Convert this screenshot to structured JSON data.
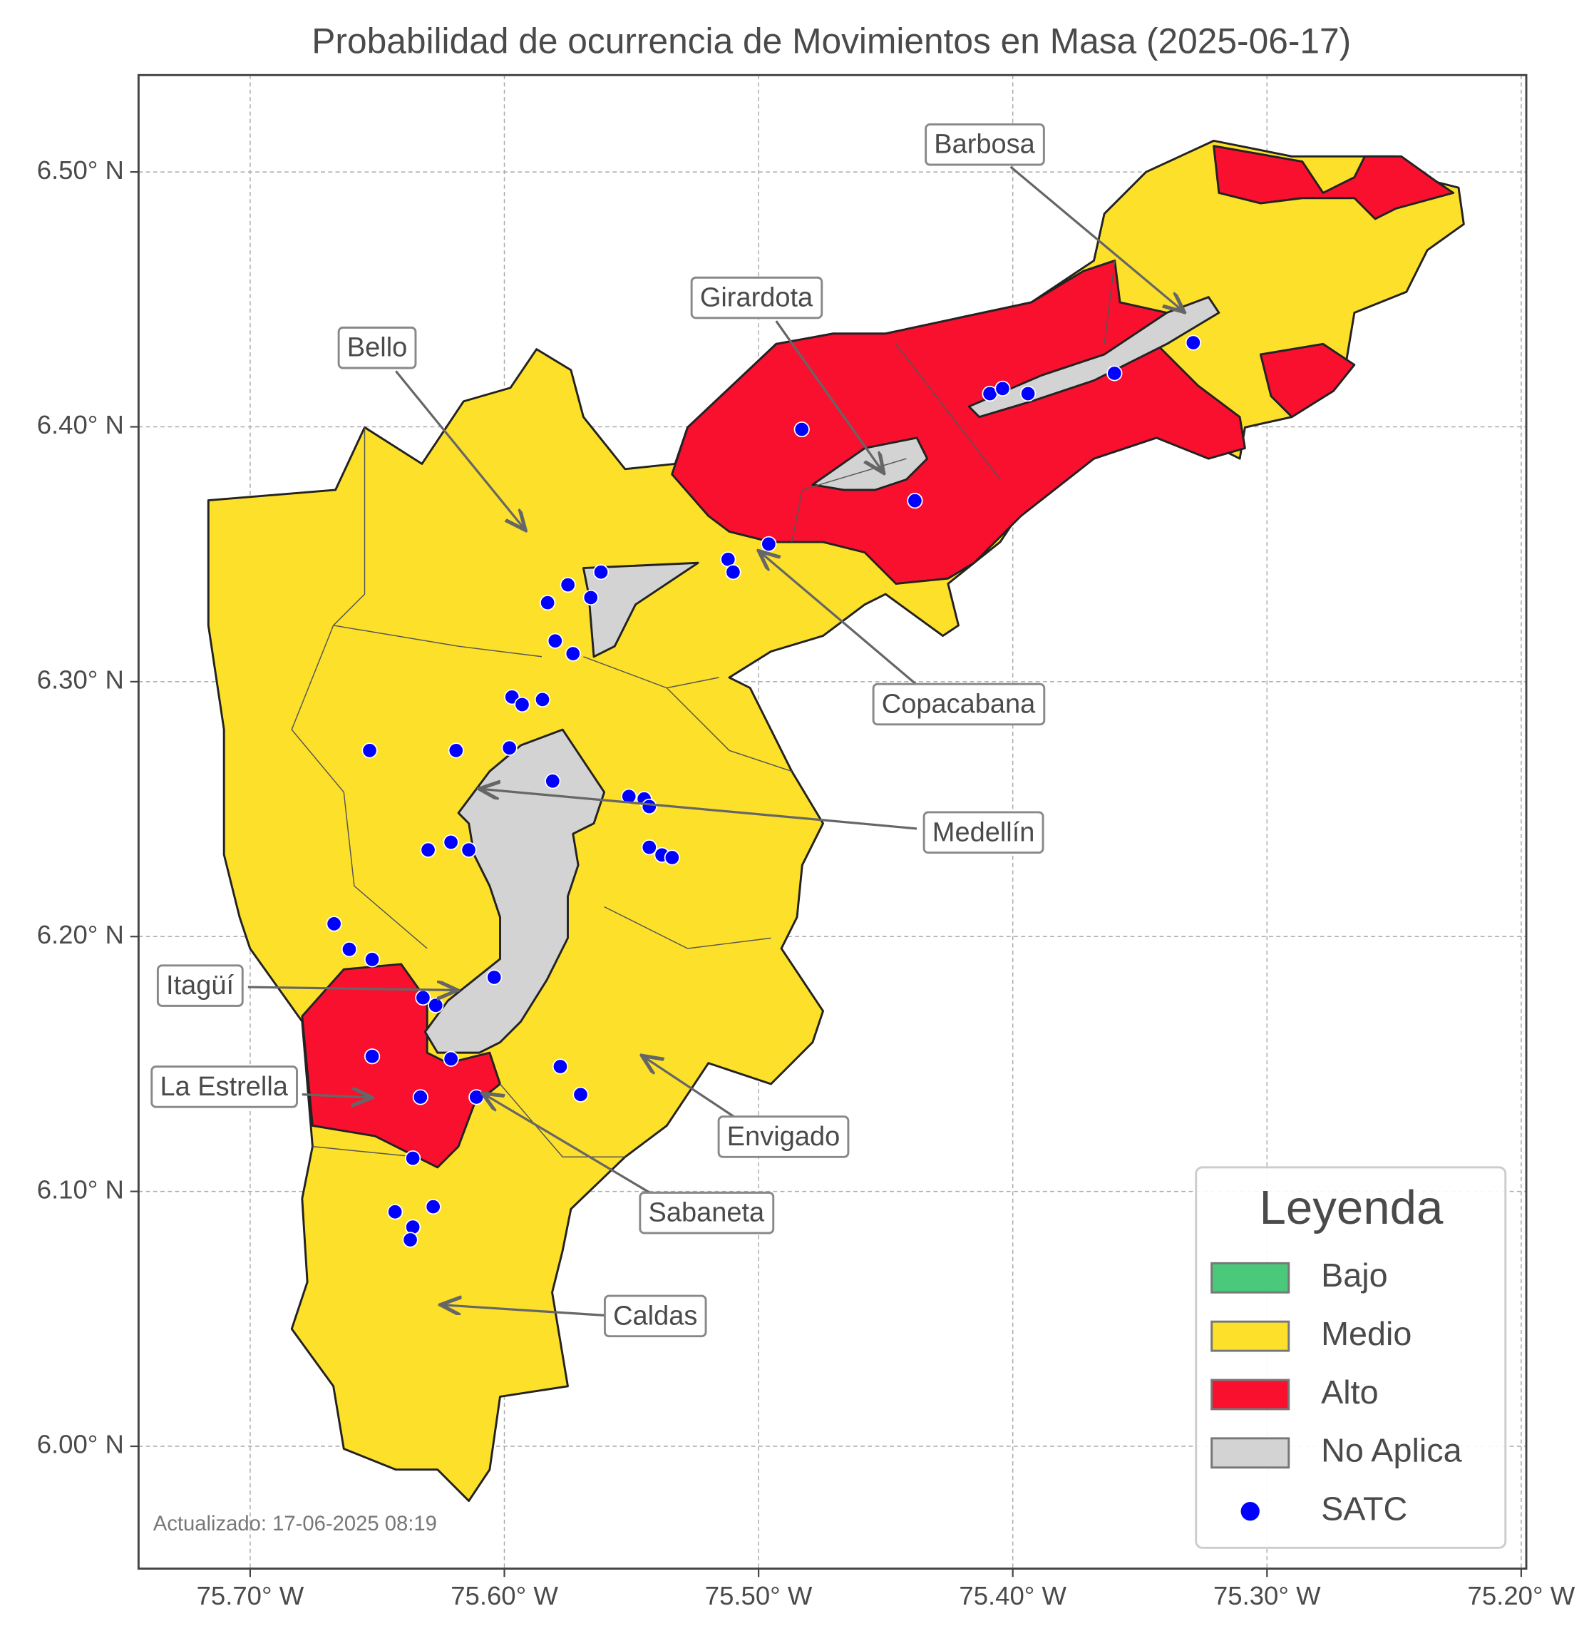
{
  "chart_data": {
    "type": "map",
    "title": "Probabilidad de ocurrencia de Movimientos en Masa (2025-06-17)",
    "xlim": [
      -75.7439,
      -75.198
    ],
    "ylim": [
      5.952,
      6.538
    ],
    "xticks": [
      {
        "value": -75.7,
        "label": "75.70° W"
      },
      {
        "value": -75.6,
        "label": "75.60° W"
      },
      {
        "value": -75.5,
        "label": "75.50° W"
      },
      {
        "value": -75.4,
        "label": "75.40° W"
      },
      {
        "value": -75.3,
        "label": "75.30° W"
      },
      {
        "value": -75.2,
        "label": "75.20° W"
      }
    ],
    "yticks": [
      {
        "value": 6.0,
        "label": "6.00° N"
      },
      {
        "value": 6.1,
        "label": "6.10° N"
      },
      {
        "value": 6.2,
        "label": "6.20° N"
      },
      {
        "value": 6.3,
        "label": "6.30° N"
      },
      {
        "value": 6.4,
        "label": "6.40° N"
      },
      {
        "value": 6.5,
        "label": "6.50° N"
      }
    ],
    "grid": true,
    "legend": {
      "title": "Leyenda",
      "position": "lower right",
      "items": [
        {
          "name": "Bajo",
          "color": "#4ac97a"
        },
        {
          "name": "Medio",
          "color": "#fde02a"
        },
        {
          "name": "Alto",
          "color": "#f8102e"
        },
        {
          "name": "No Aplica",
          "color": "#d3d3d3"
        }
      ]
    },
    "series": [
      {
        "name": "SATC",
        "color": "#0000ff",
        "x": [
          -75.483,
          -75.4385,
          -75.409,
          -75.404,
          -75.394,
          -75.36,
          -75.329,
          -75.496,
          -75.512,
          -75.51,
          -75.562,
          -75.575,
          -75.566,
          -75.583,
          -75.58,
          -75.573,
          -75.597,
          -75.593,
          -75.585,
          -75.653,
          -75.619,
          -75.598,
          -75.581,
          -75.551,
          -75.545,
          -75.543,
          -75.543,
          -75.538,
          -75.534,
          -75.63,
          -75.621,
          -75.614,
          -75.667,
          -75.661,
          -75.652,
          -75.604,
          -75.632,
          -75.627,
          -75.652,
          -75.621,
          -75.578,
          -75.57,
          -75.633,
          -75.611,
          -75.636,
          -75.643,
          -75.628,
          -75.636,
          -75.637
        ],
        "y": [
          6.399,
          6.371,
          6.413,
          6.415,
          6.413,
          6.421,
          6.433,
          6.354,
          6.348,
          6.343,
          6.343,
          6.338,
          6.333,
          6.331,
          6.316,
          6.311,
          6.294,
          6.291,
          6.293,
          6.273,
          6.273,
          6.274,
          6.261,
          6.255,
          6.254,
          6.251,
          6.235,
          6.232,
          6.231,
          6.234,
          6.237,
          6.234,
          6.205,
          6.195,
          6.191,
          6.184,
          6.176,
          6.173,
          6.153,
          6.152,
          6.149,
          6.138,
          6.137,
          6.137,
          6.113,
          6.092,
          6.094,
          6.086,
          6.081
        ]
      }
    ],
    "annotations": [
      "Barbosa",
      "Girardota",
      "Bello",
      "Copacabana",
      "Medellín",
      "Itagüí",
      "La Estrella",
      "Envigado",
      "Sabaneta",
      "Caldas"
    ],
    "footnote": "Actualizado: 17-06-2025 08:19"
  }
}
